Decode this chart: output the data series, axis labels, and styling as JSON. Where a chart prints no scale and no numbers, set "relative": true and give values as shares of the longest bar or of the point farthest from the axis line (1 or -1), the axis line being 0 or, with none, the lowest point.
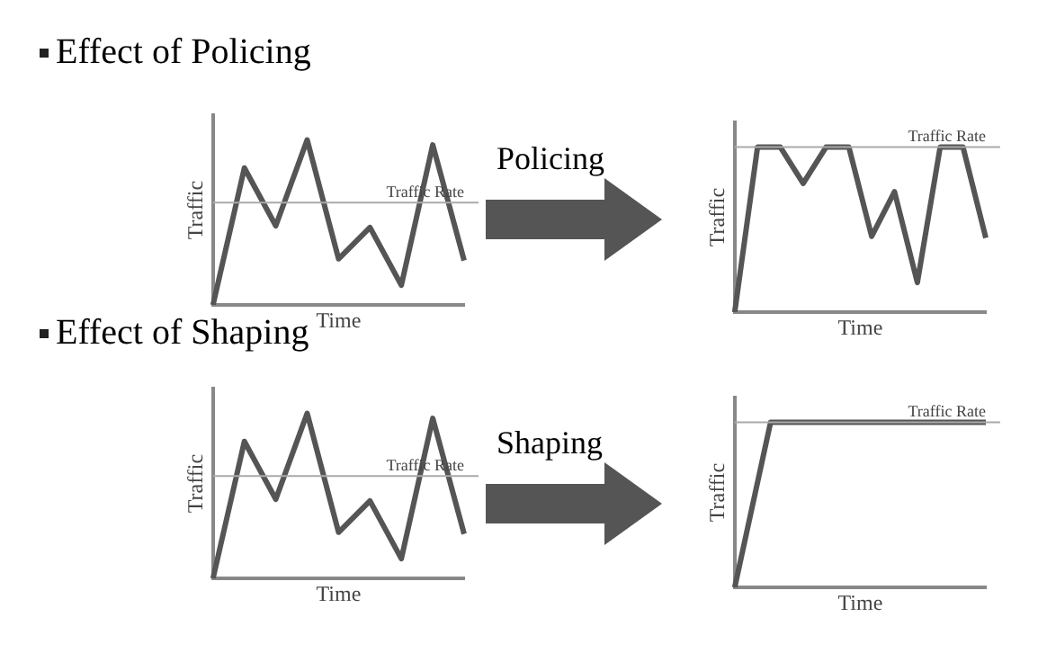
{
  "chart_data": [
    {
      "type": "line",
      "title": "Effect of Policing",
      "xlabel": "Time",
      "ylabel": "Traffic",
      "relative": true,
      "color": "#555555",
      "categories": [
        null,
        null,
        null,
        null,
        null,
        null,
        null,
        null,
        null
      ],
      "values": [
        0,
        0.83,
        0.48,
        1,
        0.28,
        0.47,
        0.12,
        0.97,
        0.27
      ],
      "ref_lines": [
        {
          "axis": "y",
          "value": 0.62,
          "label": "Traffic Rate",
          "color": "#aaaaaa"
        }
      ]
    },
    {
      "type": "line",
      "annotations": [
        "Policing"
      ],
      "xlabel": "Time",
      "ylabel": "Traffic",
      "relative": true,
      "color": "#555555",
      "categories": [
        null,
        null,
        null,
        null,
        null,
        null,
        null,
        null,
        null,
        null,
        null,
        null
      ],
      "values": [
        0,
        1,
        1,
        0.78,
        1,
        1,
        0.46,
        0.73,
        0.18,
        1,
        1,
        0.45
      ],
      "ref_lines": [
        {
          "axis": "y",
          "value": 1,
          "label": "Traffic Rate",
          "color": "#aaaaaa"
        }
      ]
    },
    {
      "type": "line",
      "title": "Effect of Shaping",
      "xlabel": "Time",
      "ylabel": "Traffic",
      "relative": true,
      "color": "#555555",
      "categories": [
        null,
        null,
        null,
        null,
        null,
        null,
        null,
        null,
        null
      ],
      "values": [
        0,
        0.83,
        0.48,
        1,
        0.28,
        0.47,
        0.12,
        0.97,
        0.27
      ],
      "ref_lines": [
        {
          "axis": "y",
          "value": 0.62,
          "label": "Traffic Rate",
          "color": "#aaaaaa"
        }
      ]
    },
    {
      "type": "line",
      "annotations": [
        "Shaping"
      ],
      "xlabel": "Time",
      "ylabel": "Traffic",
      "relative": true,
      "color": "#555555",
      "categories": [
        null,
        null,
        null,
        null,
        null,
        null,
        null,
        null
      ],
      "values": [
        0,
        1,
        1,
        1,
        1,
        1,
        1,
        1
      ],
      "ref_lines": [
        {
          "axis": "y",
          "value": 1,
          "label": "Traffic Rate",
          "color": "#aaaaaa"
        }
      ]
    }
  ]
}
